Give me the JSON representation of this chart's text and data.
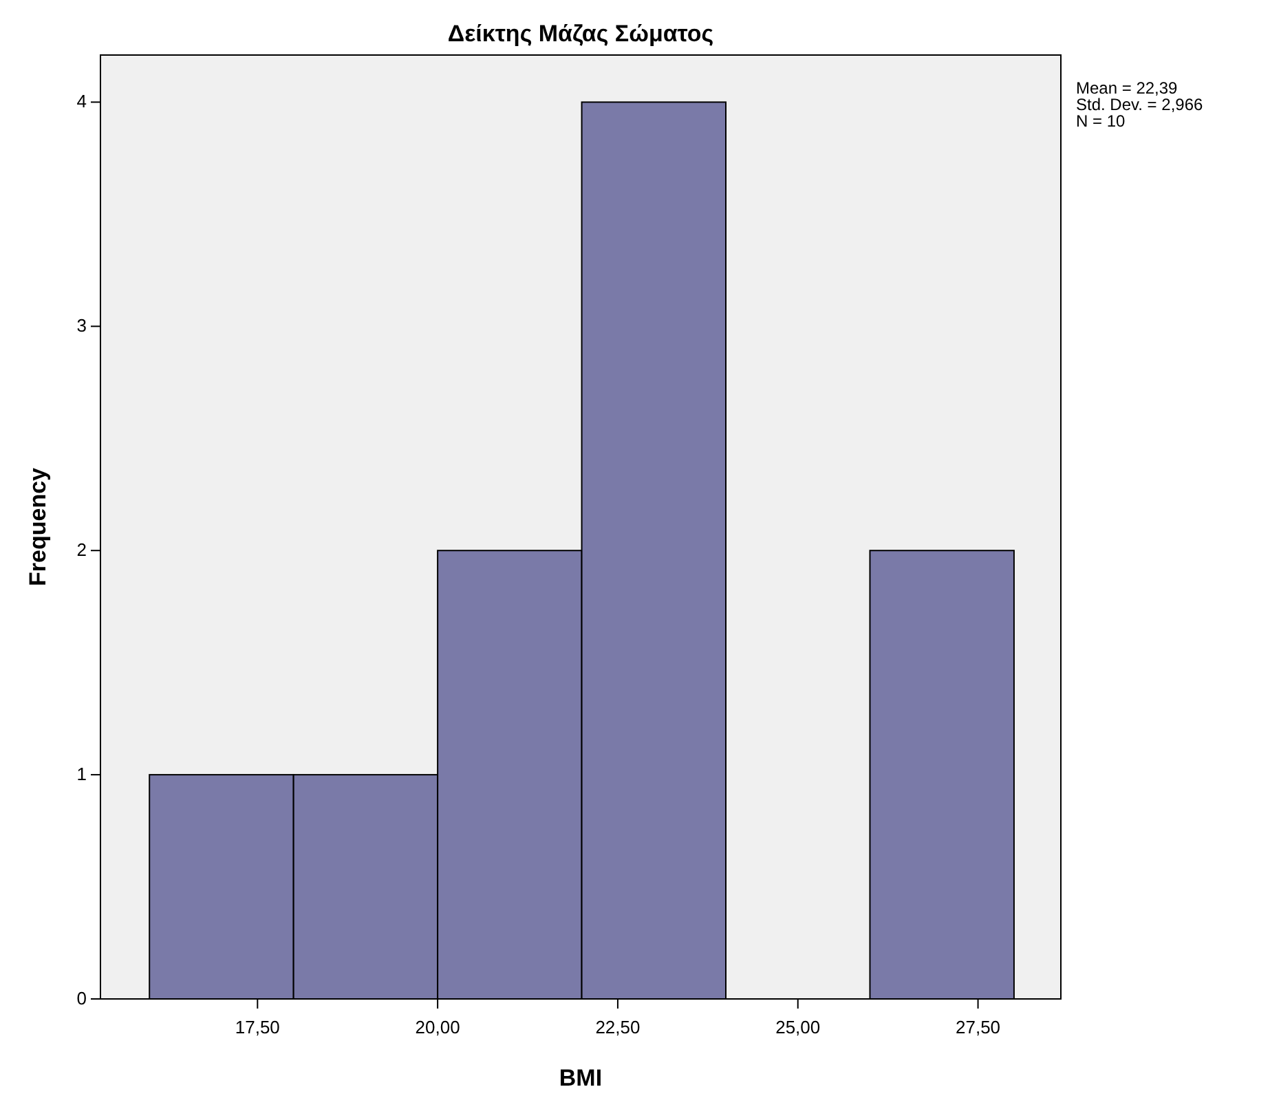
{
  "chart_data": {
    "type": "histogram",
    "title": "Δείκτης Μάζας Σώματος",
    "xlabel": "BMI",
    "ylabel": "Frequency",
    "bins": [
      16,
      18,
      20,
      22,
      24,
      26,
      28
    ],
    "values": [
      1,
      1,
      2,
      4,
      0,
      2
    ],
    "color": "#7a7aa8",
    "xlim": [
      15.32,
      28.65
    ],
    "ylim": [
      0,
      4.21
    ],
    "xticks": [
      {
        "value": 17.5,
        "label": "17,50"
      },
      {
        "value": 20,
        "label": "20,00"
      },
      {
        "value": 22.5,
        "label": "22,50"
      },
      {
        "value": 25,
        "label": "25,00"
      },
      {
        "value": 27.5,
        "label": "27,50"
      }
    ],
    "yticks": [
      0,
      1,
      2,
      3,
      4
    ],
    "grid": false,
    "annotations": [
      "Mean = 22,39",
      "Std. Dev. = 2,966",
      "N = 10"
    ]
  }
}
